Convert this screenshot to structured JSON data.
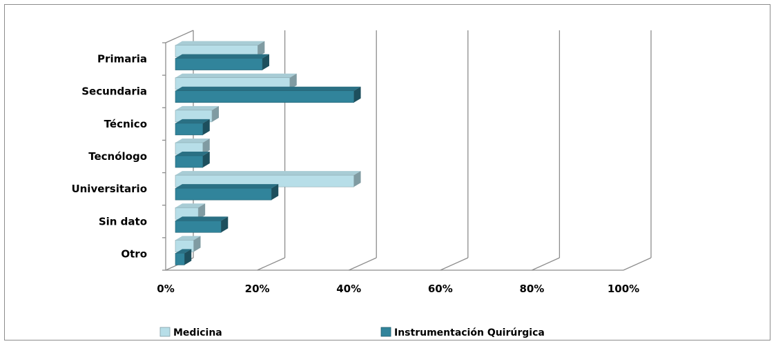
{
  "chart_data": {
    "type": "bar",
    "orientation": "horizontal",
    "categories": [
      "Primaria",
      "Secundaria",
      "Técnico",
      "Tecnólogo",
      "Universitario",
      "Sin dato",
      "Otro"
    ],
    "series": [
      {
        "name": "Medicina",
        "values": [
          18,
          25,
          8,
          6,
          39,
          5,
          4
        ],
        "color": "#b7dee8"
      },
      {
        "name": "Instrumentación Quirúrgica",
        "values": [
          19,
          39,
          6,
          6,
          21,
          10,
          2
        ],
        "color": "#31849b"
      }
    ],
    "xlim": [
      0,
      100
    ],
    "x_ticks": [
      "0%",
      "20%",
      "40%",
      "60%",
      "80%",
      "100%"
    ],
    "grid": true,
    "legend_position": "bottom",
    "title": "",
    "xlabel": "",
    "ylabel": ""
  }
}
